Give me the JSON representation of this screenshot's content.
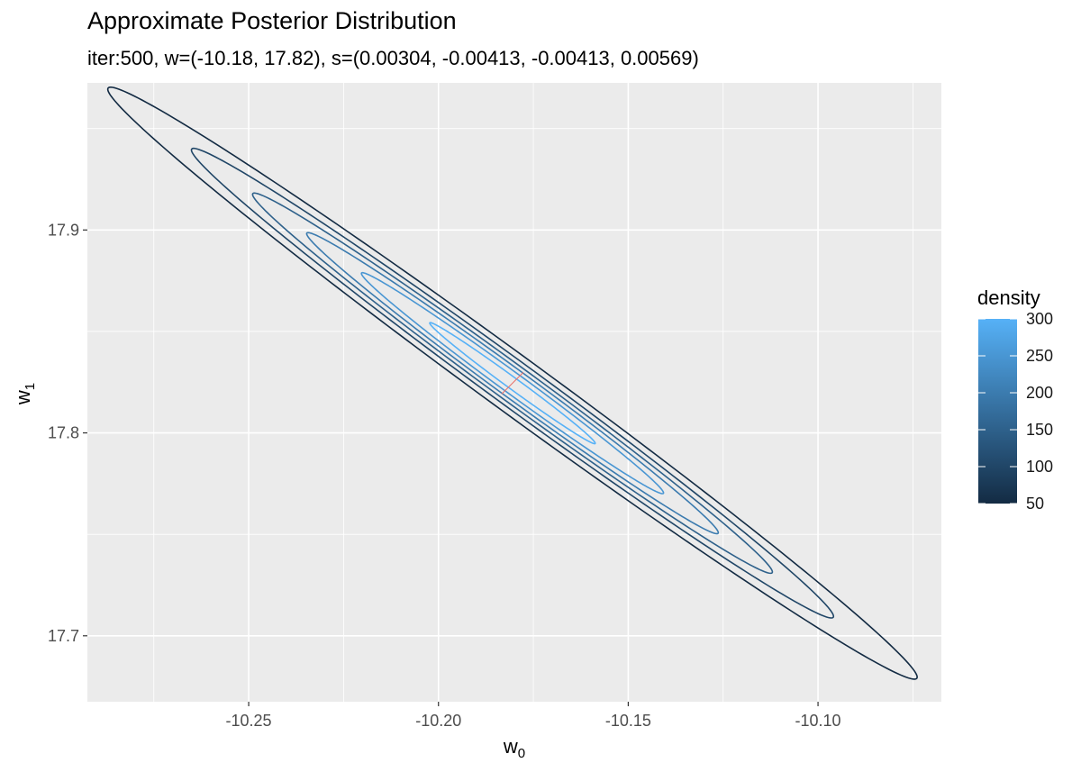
{
  "chart_data": {
    "type": "contour",
    "title": "Approximate Posterior Distribution",
    "subtitle": "iter:500, w=(-10.18, 17.82), s=(0.00304, -0.00413, -0.00413, 0.00569)",
    "xlabel": "w",
    "xlabel_sub": "0",
    "ylabel": "w",
    "ylabel_sub": "1",
    "xlim": [
      -10.2925,
      -10.0675
    ],
    "ylim": [
      17.6675,
      17.9725
    ],
    "x_ticks": [
      -10.25,
      -10.2,
      -10.15,
      -10.1
    ],
    "x_tick_labels": [
      "-10.25",
      "-10.20",
      "-10.15",
      "-10.10"
    ],
    "y_ticks": [
      17.7,
      17.8,
      17.9
    ],
    "y_tick_labels": [
      "17.7",
      "17.8",
      "17.9"
    ],
    "grid": true,
    "mean": [
      -10.1805,
      17.8245
    ],
    "covariance": [
      [
        0.00304,
        -0.00413
      ],
      [
        -0.00413,
        0.00569
      ]
    ],
    "contour_levels": [
      50,
      100,
      150,
      200,
      250,
      300
    ],
    "legend": {
      "title": "density",
      "position": "right",
      "range": [
        50,
        300
      ],
      "ticks": [
        50,
        100,
        150,
        200,
        250,
        300
      ],
      "tick_labels": [
        "50",
        "100",
        "150",
        "200",
        "250",
        "300"
      ],
      "color_low": "#132b43",
      "color_high": "#56b1f7"
    },
    "marker_color": "#e8706a",
    "panel_background": "#ebebeb",
    "grid_color": "#ffffff"
  }
}
